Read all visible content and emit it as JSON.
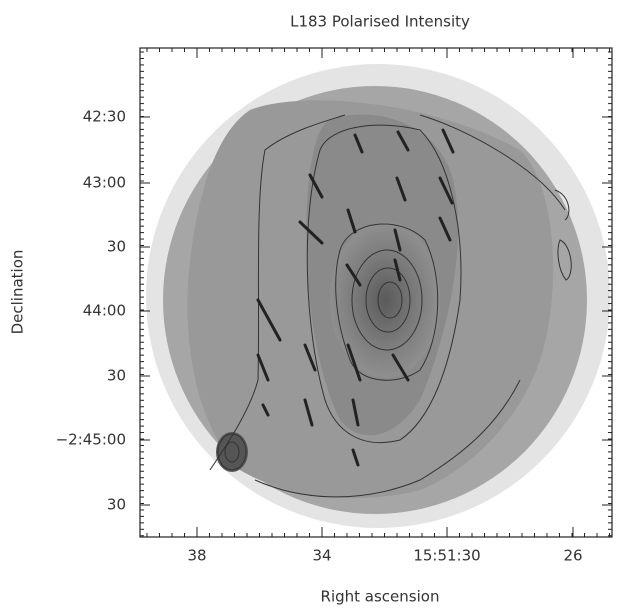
{
  "figure": {
    "title": "L183 Polarised Intensity",
    "x_label": "Right ascension",
    "y_label": "Declination",
    "x_ticks": [
      "38",
      "34",
      "15:51:30",
      "26"
    ],
    "y_ticks": [
      "42:30",
      "43:00",
      "30",
      "44:00",
      "30",
      "−2:45:00",
      "30"
    ]
  }
}
